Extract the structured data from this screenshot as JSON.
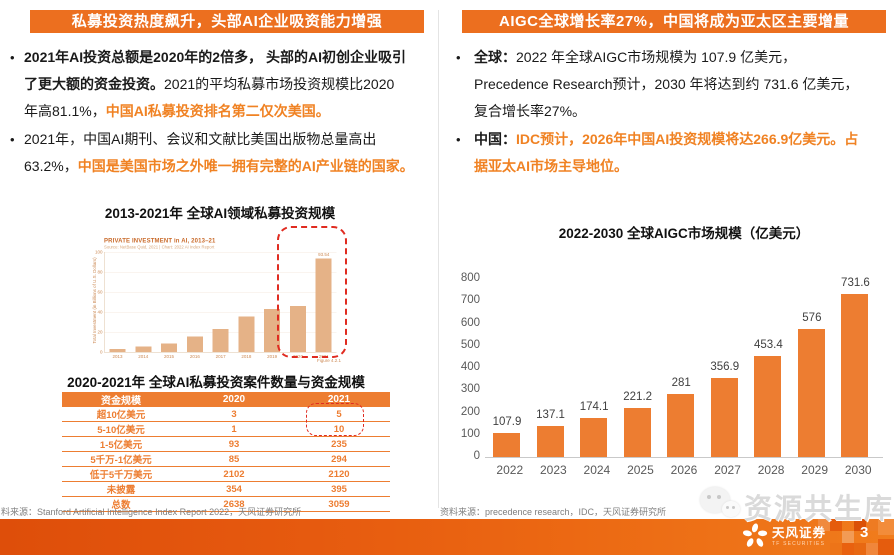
{
  "left_panel": {
    "header": "私募投资热度飙升，头部AI企业吸资能力增强",
    "bullets": [
      {
        "segments": [
          {
            "style": "bold-black",
            "text": "2021年AI投资总额是2020年的2倍多， 头部的AI初创企业吸引\n了更大额的资金投资。"
          },
          {
            "style": "black",
            "text": "2021的平均私募市场投资规模比2020\n年高81.1%，"
          },
          {
            "style": "bold-orange",
            "text": "中国AI私募投资排名第二仅次美国。"
          }
        ]
      },
      {
        "segments": [
          {
            "style": "black",
            "text": "2021年，中国AI期刊、会议和文献比美国出版物总量高出\n63.2%，"
          },
          {
            "style": "bold-orange",
            "text": "中国是美国市场之外唯一拥有完整的AI产业链的国家。"
          }
        ]
      }
    ],
    "chart_title": "2013-2021年 全球AI领域私募投资规模",
    "table_title": "2020-2021年 全球AI私募投资案件数量与资金规模",
    "table": {
      "headers": [
        "资金规模",
        "2020",
        "2021"
      ],
      "rows": [
        [
          "超10亿美元",
          "3",
          "5"
        ],
        [
          "5-10亿美元",
          "1",
          "10"
        ],
        [
          "1-5亿美元",
          "93",
          "235"
        ],
        [
          "5千万-1亿美元",
          "85",
          "294"
        ],
        [
          "低于5千万美元",
          "2102",
          "2120"
        ],
        [
          "未披露",
          "354",
          "395"
        ],
        [
          "总数",
          "2638",
          "3059"
        ]
      ]
    },
    "source": "料来源：Stanford Artificial Intelligence Index Report 2022，天风证券研究所"
  },
  "right_panel": {
    "header": "AIGC全球增长率27%，中国将成为亚太区主要增量",
    "bullets": [
      {
        "segments": [
          {
            "style": "bold-black",
            "text": "全球："
          },
          {
            "style": "black",
            "text": "2022 年全球AIGC市场规模为 107.9 亿美元，\nPrecedence Research预计，2030 年将达到约 731.6 亿美元，\n复合增长率27%。"
          }
        ]
      },
      {
        "segments": [
          {
            "style": "bold-black",
            "text": "中国："
          },
          {
            "style": "bold-orange",
            "text": "IDC预计，2026年中国AI投资规模将达266.9亿美元。占\n据亚太AI市场主导地位。"
          }
        ]
      }
    ],
    "source": "资料来源：precedence research，IDC，天风证券研究所"
  },
  "chart_data": [
    {
      "type": "bar",
      "title": "PRIVATE INVESTMENT in AI, 2013–21",
      "subtitle": "Source: NetBase Quid, 2021 | Chart: 2022 AI Index Report",
      "categories": [
        "2013",
        "2014",
        "2015",
        "2016",
        "2017",
        "2018",
        "2019",
        "2020",
        "2021"
      ],
      "values": [
        3,
        5.5,
        8.5,
        15.5,
        23,
        35.5,
        43,
        46,
        93.5
      ],
      "value_labels": [
        "",
        "",
        "",
        "",
        "",
        "",
        "",
        "",
        "93.54"
      ],
      "xlabel": "",
      "ylabel": "Total Investment (in Billions of U.S. Dollars)",
      "ylim": [
        0,
        100
      ],
      "yticks": [
        0,
        20,
        40,
        60,
        80,
        100
      ],
      "figure_caption": "Figure 4.2.1",
      "annotation": "red dashed highlight box around the 2020 and 2021 bars",
      "bar_color": "#E5B287",
      "grid": true,
      "legend": false
    },
    {
      "type": "bar",
      "title": "2022-2030 全球AIGC市场规模（亿美元）",
      "categories": [
        "2022",
        "2023",
        "2024",
        "2025",
        "2026",
        "2027",
        "2028",
        "2029",
        "2030"
      ],
      "values": [
        107.9,
        137.1,
        174.1,
        221.2,
        281,
        356.9,
        453.4,
        576,
        731.6
      ],
      "value_labels": [
        "107.9",
        "137.1",
        "174.1",
        "221.2",
        "281",
        "356.9",
        "453.4",
        "576",
        "731.6"
      ],
      "xlabel": "",
      "ylabel": "",
      "ylim": [
        0,
        800
      ],
      "yticks": [
        0,
        100,
        200,
        300,
        400,
        500,
        600,
        700,
        800
      ],
      "bar_color": "#ED7D31",
      "grid": false,
      "legend": false
    }
  ],
  "footer": {
    "watermark_text": "资源共生库",
    "logo_text": "天风证券",
    "logo_subtext": "TF SECURITIES",
    "page_number": "3"
  },
  "colors": {
    "header_orange": "#EC6F1F",
    "highlight_orange_text": "#F08223",
    "table_orange": "#ED7D31",
    "right_bar_orange": "#ED7D31",
    "embedded_bar_tan": "#E5B287",
    "highlight_red": "#E02B20",
    "footer_gradient_start": "#DE4E0A",
    "footer_gradient_end": "#F07C1C"
  }
}
